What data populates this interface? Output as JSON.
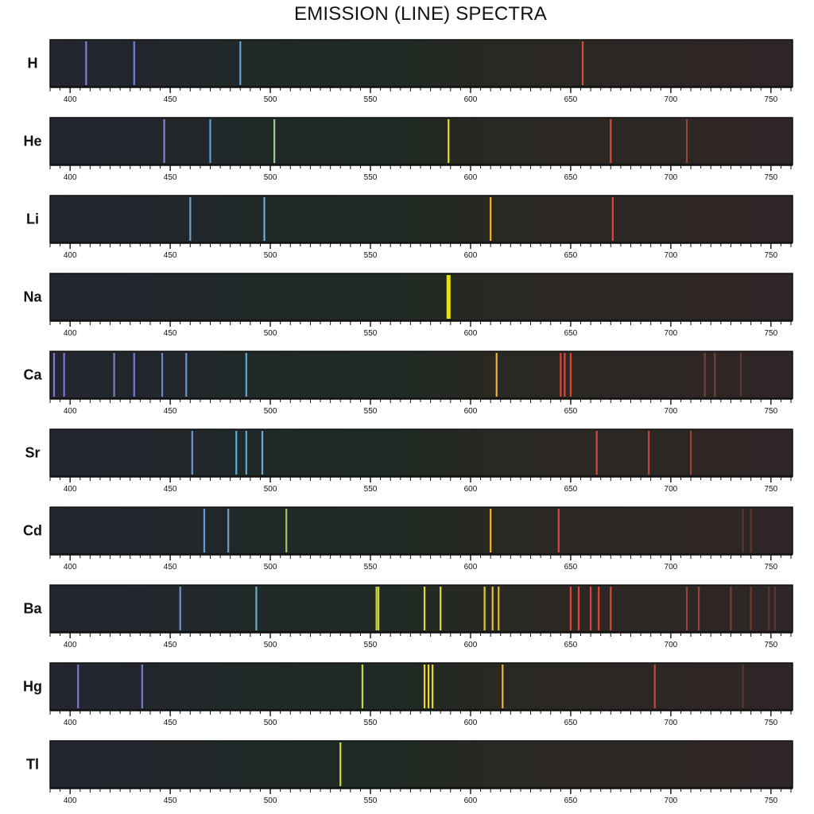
{
  "chart_data": {
    "type": "spectrum",
    "title": "EMISSION (LINE) SPECTRA",
    "x_range": [
      390,
      760
    ],
    "tick_labels": [
      "400",
      "450",
      "500",
      "550",
      "600",
      "650",
      "700",
      "750"
    ],
    "tick_values": [
      400,
      450,
      500,
      550,
      600,
      650,
      700,
      750
    ],
    "minor_tick_step": 5,
    "series": [
      {
        "name": "H",
        "lines": [
          {
            "nm": 408,
            "color": "#8a7fd8"
          },
          {
            "nm": 432,
            "color": "#7a86d8"
          },
          {
            "nm": 485,
            "color": "#6aa8d8"
          },
          {
            "nm": 656,
            "color": "#e05040"
          }
        ]
      },
      {
        "name": "He",
        "lines": [
          {
            "nm": 447,
            "color": "#8a86d8"
          },
          {
            "nm": 470,
            "color": "#68a4d8"
          },
          {
            "nm": 502,
            "color": "#a8d0a0"
          },
          {
            "nm": 589,
            "color": "#f2e230"
          },
          {
            "nm": 670,
            "color": "#e05040"
          },
          {
            "nm": 708,
            "color": "#a0443a"
          }
        ]
      },
      {
        "name": "Li",
        "lines": [
          {
            "nm": 460,
            "color": "#6aa4dc"
          },
          {
            "nm": 497,
            "color": "#78b4dc"
          },
          {
            "nm": 610,
            "color": "#f0c030"
          },
          {
            "nm": 671,
            "color": "#e04a3a"
          }
        ]
      },
      {
        "name": "Na",
        "lines": [
          {
            "nm": 589,
            "color": "#f4ea18",
            "width": 5
          }
        ]
      },
      {
        "name": "Ca",
        "lines": [
          {
            "nm": 392,
            "color": "#8a7ad8"
          },
          {
            "nm": 397,
            "color": "#8a7ad8"
          },
          {
            "nm": 422,
            "color": "#7a82d8"
          },
          {
            "nm": 432,
            "color": "#7a82d8"
          },
          {
            "nm": 446,
            "color": "#7888d8"
          },
          {
            "nm": 458,
            "color": "#6a98d8"
          },
          {
            "nm": 488,
            "color": "#6ab0d8"
          },
          {
            "nm": 613,
            "color": "#f0c030"
          },
          {
            "nm": 645,
            "color": "#e04a3a"
          },
          {
            "nm": 647,
            "color": "#e04a3a"
          },
          {
            "nm": 650,
            "color": "#e04a3a"
          },
          {
            "nm": 717,
            "color": "#804038"
          },
          {
            "nm": 722,
            "color": "#804038"
          },
          {
            "nm": 735,
            "color": "#603632"
          }
        ]
      },
      {
        "name": "Sr",
        "lines": [
          {
            "nm": 461,
            "color": "#6aa0d8"
          },
          {
            "nm": 483,
            "color": "#6ab0d8"
          },
          {
            "nm": 488,
            "color": "#6ab0d8"
          },
          {
            "nm": 496,
            "color": "#70b4d8"
          },
          {
            "nm": 663,
            "color": "#e04a3a"
          },
          {
            "nm": 689,
            "color": "#c84a3a"
          },
          {
            "nm": 710,
            "color": "#a0443a"
          }
        ]
      },
      {
        "name": "Cd",
        "lines": [
          {
            "nm": 467,
            "color": "#6aa4d8"
          },
          {
            "nm": 479,
            "color": "#6aa8d8"
          },
          {
            "nm": 508,
            "color": "#a8d060"
          },
          {
            "nm": 610,
            "color": "#f0c030"
          },
          {
            "nm": 644,
            "color": "#e04a3a"
          },
          {
            "nm": 736,
            "color": "#603632"
          },
          {
            "nm": 740,
            "color": "#603632"
          }
        ]
      },
      {
        "name": "Ba",
        "lines": [
          {
            "nm": 455,
            "color": "#6aa0d8"
          },
          {
            "nm": 493,
            "color": "#6ab0d8"
          },
          {
            "nm": 553,
            "color": "#d8e040"
          },
          {
            "nm": 554,
            "color": "#d8e040"
          },
          {
            "nm": 577,
            "color": "#f0e030"
          },
          {
            "nm": 585,
            "color": "#f0e030"
          },
          {
            "nm": 607,
            "color": "#f0d030"
          },
          {
            "nm": 611,
            "color": "#f0c830"
          },
          {
            "nm": 614,
            "color": "#f0c030"
          },
          {
            "nm": 650,
            "color": "#e04a3a"
          },
          {
            "nm": 654,
            "color": "#e04a3a"
          },
          {
            "nm": 660,
            "color": "#e04a3a"
          },
          {
            "nm": 664,
            "color": "#e04a3a"
          },
          {
            "nm": 670,
            "color": "#e04a3a"
          },
          {
            "nm": 708,
            "color": "#a0443a"
          },
          {
            "nm": 714,
            "color": "#a0443a"
          },
          {
            "nm": 730,
            "color": "#804038"
          },
          {
            "nm": 740,
            "color": "#703a34"
          },
          {
            "nm": 749,
            "color": "#603632"
          },
          {
            "nm": 752,
            "color": "#603632"
          }
        ]
      },
      {
        "name": "Hg",
        "lines": [
          {
            "nm": 404,
            "color": "#8a7ad8"
          },
          {
            "nm": 436,
            "color": "#7a82d8"
          },
          {
            "nm": 546,
            "color": "#d8e040"
          },
          {
            "nm": 577,
            "color": "#f0e030"
          },
          {
            "nm": 579,
            "color": "#f0e030"
          },
          {
            "nm": 581,
            "color": "#f0e030"
          },
          {
            "nm": 616,
            "color": "#f0c030"
          },
          {
            "nm": 692,
            "color": "#c84a3a"
          },
          {
            "nm": 736,
            "color": "#603632"
          }
        ]
      },
      {
        "name": "Tl",
        "lines": [
          {
            "nm": 535,
            "color": "#d8e040"
          }
        ]
      }
    ],
    "colors": {
      "band_background_left": "#22242e",
      "band_background_mid": "#1e2822",
      "band_background_right": "#2e2424",
      "band_border": "#111111",
      "axis": "#111111"
    }
  }
}
